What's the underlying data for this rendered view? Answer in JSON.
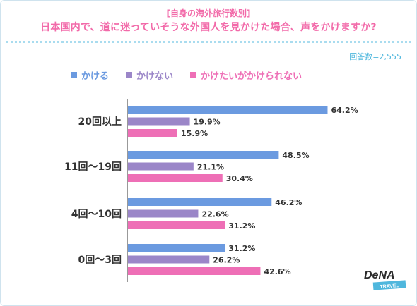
{
  "header": {
    "subtitle": "[自身の海外旅行数別]",
    "title": "日本国内で、道に迷っていそうな外国人を見かけた場合、声をかけますか?",
    "count": "回答数=2,555"
  },
  "logo": {
    "main": "DeNA",
    "sub": "TRAVEL"
  },
  "colors": {
    "series1": "#6b9ae0",
    "series2": "#9b86c8",
    "series3": "#ee6fb6",
    "accent_pink": "#f26aa9",
    "accent_blue": "#4fb7dd"
  },
  "chart_data": {
    "type": "bar",
    "orientation": "horizontal",
    "categories": [
      "20回以上",
      "11回～19回",
      "4回～10回",
      "0回～3回"
    ],
    "series": [
      {
        "name": "かける",
        "values": [
          64.2,
          48.5,
          46.2,
          31.2
        ]
      },
      {
        "name": "かけない",
        "values": [
          19.9,
          21.1,
          22.6,
          26.2
        ]
      },
      {
        "name": "かけたいがかけられない",
        "values": [
          15.9,
          30.4,
          31.2,
          42.6
        ]
      }
    ],
    "value_labels": [
      [
        "64.2%",
        "48.5%",
        "46.2%",
        "31.2%"
      ],
      [
        "19.9%",
        "21.1%",
        "22.6%",
        "26.2%"
      ],
      [
        "15.9%",
        "30.4%",
        "31.2%",
        "42.6%"
      ]
    ],
    "xlim": [
      0,
      100
    ],
    "grid": false,
    "legend": "top-left"
  }
}
